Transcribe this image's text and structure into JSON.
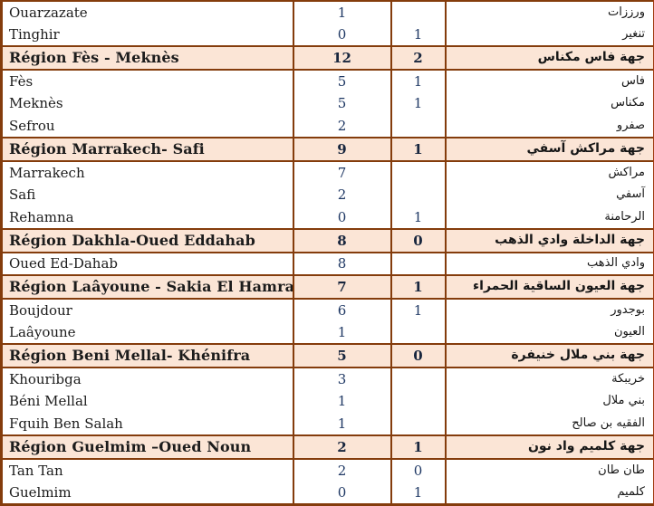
{
  "table": {
    "description": "Table of Moroccan regions and cities with two numeric count columns, French names on the left and Arabic names on the right",
    "border_color": "#843C0C",
    "region_row_bg": "#FBE5D6",
    "number_color": "#1F3864",
    "rows": [
      {
        "type": "city",
        "fr": "Ouarzazate",
        "v1": "1",
        "v2": "",
        "ar": "ورززات"
      },
      {
        "type": "city",
        "fr": "Tinghir",
        "v1": "0",
        "v2": "1",
        "ar": "تنغير"
      },
      {
        "type": "region",
        "fr": "Région Fès - Meknès",
        "v1": "12",
        "v2": "2",
        "ar": "جهة فاس مكناس"
      },
      {
        "type": "city",
        "fr": "Fès",
        "v1": "5",
        "v2": "1",
        "ar": "فاس"
      },
      {
        "type": "city",
        "fr": "Meknès",
        "v1": "5",
        "v2": "1",
        "ar": "مكناس"
      },
      {
        "type": "city",
        "fr": "Sefrou",
        "v1": "2",
        "v2": "",
        "ar": "صفرو"
      },
      {
        "type": "region",
        "fr": "Région Marrakech- Safi",
        "v1": "9",
        "v2": "1",
        "ar": "جهة مراكش آسفي"
      },
      {
        "type": "city",
        "fr": "Marrakech",
        "v1": "7",
        "v2": "",
        "ar": "مراكش"
      },
      {
        "type": "city",
        "fr": "Safi",
        "v1": "2",
        "v2": "",
        "ar": "آسفي"
      },
      {
        "type": "city",
        "fr": "Rehamna",
        "v1": "0",
        "v2": "1",
        "ar": "الرحامنة"
      },
      {
        "type": "region",
        "fr": "Région Dakhla-Oued Eddahab",
        "v1": "8",
        "v2": "0",
        "ar": "جهة الداخلة وادي الذهب"
      },
      {
        "type": "city",
        "fr": "Oued Ed-Dahab",
        "v1": "8",
        "v2": "",
        "ar": "وادي الذهب"
      },
      {
        "type": "region",
        "fr": "Région Laâyoune - Sakia El Hamra",
        "v1": "7",
        "v2": "1",
        "ar": "جهة العيون الساقية الحمراء"
      },
      {
        "type": "city",
        "fr": "Boujdour",
        "v1": "6",
        "v2": "1",
        "ar": "بوجدور"
      },
      {
        "type": "city",
        "fr": "Laâyoune",
        "v1": "1",
        "v2": "",
        "ar": "العيون"
      },
      {
        "type": "region",
        "fr": "Région Beni Mellal- Khénifra",
        "v1": "5",
        "v2": "0",
        "ar": "جهة بني ملال خنيفرة"
      },
      {
        "type": "city",
        "fr": "Khouribga",
        "v1": "3",
        "v2": "",
        "ar": "خريبكة"
      },
      {
        "type": "city",
        "fr": "Béni Mellal",
        "v1": "1",
        "v2": "",
        "ar": "بني ملال"
      },
      {
        "type": "city",
        "fr": "Fquih Ben Salah",
        "v1": "1",
        "v2": "",
        "ar": "الفقيه بن صالح"
      },
      {
        "type": "region",
        "fr": "Région Guelmim –Oued Noun",
        "v1": "2",
        "v2": "1",
        "ar": "جهة كلميم واد نون"
      },
      {
        "type": "city",
        "fr": "Tan Tan",
        "v1": "2",
        "v2": "0",
        "ar": "طان طان"
      },
      {
        "type": "city",
        "fr": "Guelmim",
        "v1": "0",
        "v2": "1",
        "ar": "كلميم"
      }
    ]
  }
}
